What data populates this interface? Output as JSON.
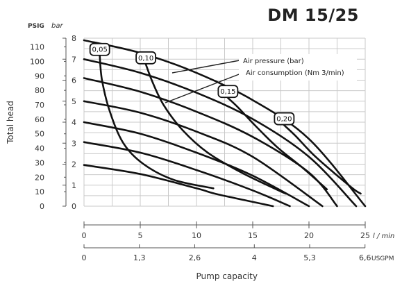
{
  "chart_data": {
    "type": "line",
    "title": "DM 15/25",
    "ylabel": "Total head",
    "xlabel": "Pump capacity",
    "y_unit_psig": "PSIG",
    "y_unit_bar": "bar",
    "x_unit_lmin": "l / min",
    "x_unit_usgpm": "USGPM",
    "ylim_bar": [
      0,
      8
    ],
    "xlim_lmin": [
      0,
      25
    ],
    "y_ticks_psig": [
      "0",
      "10",
      "20",
      "30",
      "40",
      "50",
      "60",
      "70",
      "80",
      "90",
      "100",
      "110"
    ],
    "y_ticks_bar": [
      "0",
      "1",
      "2",
      "3",
      "4",
      "5",
      "6",
      "7",
      "8"
    ],
    "x_ticks_lmin": [
      "0",
      "5",
      "10",
      "15",
      "20",
      "25"
    ],
    "x_ticks_usgpm": [
      "0",
      "1,3",
      "2,6",
      "4",
      "5,3",
      "6,6"
    ],
    "legend": {
      "air_pressure": "Air pressure (bar)",
      "air_consumption": "Air consumption (Nm 3/min)"
    },
    "air_pressure_curves": [
      {
        "points": [
          [
            0,
            1.96
          ],
          [
            5,
            1.53
          ],
          [
            10,
            0.85
          ],
          [
            12,
            0.55
          ],
          [
            16.8,
            0
          ]
        ]
      },
      {
        "points": [
          [
            0,
            3.05
          ],
          [
            5,
            2.55
          ],
          [
            10,
            1.72
          ],
          [
            15,
            0.75
          ],
          [
            18.3,
            0
          ]
        ]
      },
      {
        "points": [
          [
            0,
            4.0
          ],
          [
            5,
            3.45
          ],
          [
            10,
            2.55
          ],
          [
            15,
            1.45
          ],
          [
            20,
            0
          ]
        ]
      },
      {
        "points": [
          [
            0,
            5.0
          ],
          [
            5,
            4.45
          ],
          [
            10,
            3.55
          ],
          [
            15,
            2.35
          ],
          [
            21.2,
            0
          ]
        ]
      },
      {
        "points": [
          [
            0,
            6.1
          ],
          [
            5,
            5.45
          ],
          [
            10,
            4.5
          ],
          [
            15,
            3.3
          ],
          [
            20,
            1.6
          ],
          [
            22.5,
            0
          ]
        ]
      },
      {
        "points": [
          [
            0,
            7.0
          ],
          [
            5,
            6.35
          ],
          [
            10,
            5.4
          ],
          [
            15,
            4.15
          ],
          [
            20,
            2.35
          ],
          [
            24.2,
            0
          ]
        ]
      },
      {
        "points": [
          [
            0,
            7.9
          ],
          [
            5,
            7.3
          ],
          [
            10,
            6.35
          ],
          [
            15,
            5.05
          ],
          [
            20,
            3.2
          ],
          [
            25,
            0
          ]
        ]
      }
    ],
    "air_consumption_curves": [
      {
        "label": "0,05",
        "points": [
          [
            1.4,
            7.15
          ],
          [
            1.6,
            6.0
          ],
          [
            2.3,
            4.5
          ],
          [
            3.5,
            3.0
          ],
          [
            5.3,
            2.0
          ],
          [
            8.0,
            1.25
          ],
          [
            11.5,
            0.85
          ]
        ]
      },
      {
        "label": "0,10",
        "points": [
          [
            5.5,
            6.75
          ],
          [
            6.1,
            5.9
          ],
          [
            7.1,
            4.8
          ],
          [
            8.8,
            3.6
          ],
          [
            11.0,
            2.55
          ],
          [
            14.0,
            1.6
          ],
          [
            17.5,
            0.7
          ],
          [
            18.0,
            0.6
          ]
        ]
      },
      {
        "label": "0,15",
        "points": [
          [
            12.8,
            5.15
          ],
          [
            13.7,
            4.7
          ],
          [
            15.2,
            3.85
          ],
          [
            17.2,
            2.8
          ],
          [
            19.5,
            1.8
          ],
          [
            21.6,
            0.8
          ]
        ]
      },
      {
        "label": "0,20",
        "points": [
          [
            17.8,
            3.85
          ],
          [
            18.8,
            3.35
          ],
          [
            20.4,
            2.45
          ],
          [
            22.2,
            1.6
          ],
          [
            24.0,
            0.8
          ],
          [
            24.6,
            0.6
          ]
        ]
      }
    ]
  }
}
